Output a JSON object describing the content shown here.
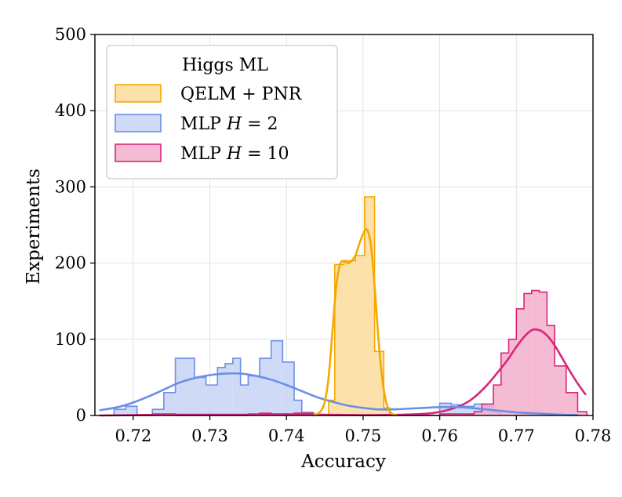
{
  "chart_data": {
    "type": "histogram",
    "title": "",
    "xlabel": "Accuracy",
    "ylabel": "Experiments",
    "xlim": [
      0.715,
      0.78
    ],
    "ylim": [
      0,
      500
    ],
    "xticks": [
      0.72,
      0.73,
      0.74,
      0.75,
      0.76,
      0.77,
      0.78
    ],
    "xtick_labels": [
      "0.72",
      "0.73",
      "0.74",
      "0.75",
      "0.76",
      "0.77",
      "0.78"
    ],
    "yticks": [
      0,
      100,
      200,
      300,
      400,
      500
    ],
    "ytick_labels": [
      "0",
      "100",
      "200",
      "300",
      "400",
      "500"
    ],
    "grid": true,
    "legend": {
      "title": "Higgs ML",
      "position": "top-left",
      "entries": [
        "QELM + PNR",
        "MLP H = 2",
        "MLP H = 10"
      ]
    },
    "series": [
      {
        "name": "QELM + PNR",
        "label_main": "QELM + PNR",
        "label_var": "",
        "label_rest": "",
        "fill": "#FDDC9B",
        "edge": "#F5A800",
        "bins": [
          [
            0.7455,
            0.7463,
            20
          ],
          [
            0.7463,
            0.7475,
            198
          ],
          [
            0.7475,
            0.749,
            203
          ],
          [
            0.749,
            0.7502,
            210
          ],
          [
            0.7502,
            0.7515,
            287
          ],
          [
            0.7515,
            0.7527,
            84
          ],
          [
            0.7527,
            0.7535,
            10
          ]
        ],
        "kde": [
          [
            0.7435,
            0
          ],
          [
            0.744,
            2
          ],
          [
            0.7445,
            6
          ],
          [
            0.745,
            18
          ],
          [
            0.7455,
            50
          ],
          [
            0.746,
            110
          ],
          [
            0.7465,
            170
          ],
          [
            0.747,
            198
          ],
          [
            0.7475,
            203
          ],
          [
            0.748,
            200
          ],
          [
            0.7485,
            203
          ],
          [
            0.749,
            210
          ],
          [
            0.7495,
            225
          ],
          [
            0.75,
            238
          ],
          [
            0.7505,
            244
          ],
          [
            0.751,
            225
          ],
          [
            0.7515,
            170
          ],
          [
            0.752,
            100
          ],
          [
            0.7525,
            48
          ],
          [
            0.753,
            18
          ],
          [
            0.7535,
            5
          ],
          [
            0.754,
            1
          ],
          [
            0.7545,
            0
          ]
        ]
      },
      {
        "name": "MLP H = 2",
        "label_main": "MLP ",
        "label_var": "H",
        "label_rest": " = 2",
        "fill": "#C7D3F6",
        "edge": "#6A8FE8",
        "bins": [
          [
            0.7175,
            0.719,
            8
          ],
          [
            0.719,
            0.7205,
            12
          ],
          [
            0.7205,
            0.7225,
            0
          ],
          [
            0.7225,
            0.724,
            8
          ],
          [
            0.724,
            0.7255,
            30
          ],
          [
            0.7255,
            0.728,
            75
          ],
          [
            0.728,
            0.7295,
            50
          ],
          [
            0.7295,
            0.731,
            40
          ],
          [
            0.731,
            0.732,
            63
          ],
          [
            0.732,
            0.733,
            68
          ],
          [
            0.733,
            0.734,
            75
          ],
          [
            0.734,
            0.735,
            40
          ],
          [
            0.735,
            0.7365,
            52
          ],
          [
            0.7365,
            0.738,
            75
          ],
          [
            0.738,
            0.7395,
            98
          ],
          [
            0.7395,
            0.741,
            70
          ],
          [
            0.741,
            0.742,
            20
          ],
          [
            0.742,
            0.7435,
            4
          ],
          [
            0.7435,
            0.7455,
            0
          ],
          [
            0.7455,
            0.7535,
            0
          ],
          [
            0.7535,
            0.76,
            0
          ],
          [
            0.76,
            0.7615,
            16
          ],
          [
            0.7615,
            0.763,
            14
          ],
          [
            0.763,
            0.7645,
            12
          ],
          [
            0.7645,
            0.766,
            15
          ],
          [
            0.766,
            0.767,
            12
          ],
          [
            0.767,
            0.768,
            5
          ]
        ],
        "kde": [
          [
            0.7157,
            7
          ],
          [
            0.718,
            11
          ],
          [
            0.72,
            17
          ],
          [
            0.722,
            25
          ],
          [
            0.724,
            34
          ],
          [
            0.726,
            43
          ],
          [
            0.728,
            49
          ],
          [
            0.73,
            53
          ],
          [
            0.732,
            55
          ],
          [
            0.734,
            55
          ],
          [
            0.736,
            52
          ],
          [
            0.738,
            47
          ],
          [
            0.74,
            40
          ],
          [
            0.742,
            32
          ],
          [
            0.744,
            24
          ],
          [
            0.746,
            18
          ],
          [
            0.748,
            13
          ],
          [
            0.75,
            10
          ],
          [
            0.752,
            8
          ],
          [
            0.754,
            8
          ],
          [
            0.756,
            9
          ],
          [
            0.758,
            10
          ],
          [
            0.76,
            11
          ],
          [
            0.762,
            11
          ],
          [
            0.764,
            10
          ],
          [
            0.766,
            8
          ],
          [
            0.768,
            6
          ],
          [
            0.77,
            4
          ],
          [
            0.772,
            3
          ],
          [
            0.774,
            2
          ],
          [
            0.776,
            1
          ],
          [
            0.778,
            0.5
          ]
        ]
      },
      {
        "name": "MLP H = 10",
        "label_main": "MLP ",
        "label_var": "H",
        "label_rest": " = 10",
        "fill": "#F2AFCB",
        "edge": "#D9267A",
        "bins": [
          [
            0.7175,
            0.7205,
            0
          ],
          [
            0.7205,
            0.7225,
            1
          ],
          [
            0.7225,
            0.7255,
            2
          ],
          [
            0.7255,
            0.735,
            0
          ],
          [
            0.735,
            0.7365,
            2
          ],
          [
            0.7365,
            0.738,
            3
          ],
          [
            0.738,
            0.741,
            2
          ],
          [
            0.741,
            0.7435,
            3
          ],
          [
            0.7435,
            0.7455,
            1
          ],
          [
            0.7455,
            0.7535,
            0
          ],
          [
            0.7535,
            0.76,
            0
          ],
          [
            0.76,
            0.7645,
            2
          ],
          [
            0.7645,
            0.7655,
            5
          ],
          [
            0.7655,
            0.767,
            15
          ],
          [
            0.767,
            0.768,
            40
          ],
          [
            0.768,
            0.769,
            82
          ],
          [
            0.769,
            0.77,
            100
          ],
          [
            0.77,
            0.771,
            140
          ],
          [
            0.771,
            0.772,
            160
          ],
          [
            0.772,
            0.773,
            164
          ],
          [
            0.773,
            0.774,
            162
          ],
          [
            0.774,
            0.775,
            118
          ],
          [
            0.775,
            0.7765,
            65
          ],
          [
            0.7765,
            0.778,
            30
          ],
          [
            0.778,
            0.7792,
            5
          ]
        ],
        "kde": [
          [
            0.7157,
            0
          ],
          [
            0.72,
            0.5
          ],
          [
            0.725,
            1
          ],
          [
            0.73,
            1
          ],
          [
            0.735,
            1
          ],
          [
            0.74,
            1.5
          ],
          [
            0.745,
            1
          ],
          [
            0.75,
            0.5
          ],
          [
            0.755,
            1
          ],
          [
            0.759,
            3
          ],
          [
            0.762,
            10
          ],
          [
            0.764,
            20
          ],
          [
            0.766,
            38
          ],
          [
            0.768,
            62
          ],
          [
            0.769,
            75
          ],
          [
            0.77,
            90
          ],
          [
            0.771,
            103
          ],
          [
            0.772,
            112
          ],
          [
            0.773,
            112
          ],
          [
            0.774,
            105
          ],
          [
            0.775,
            92
          ],
          [
            0.776,
            75
          ],
          [
            0.777,
            58
          ],
          [
            0.778,
            42
          ],
          [
            0.779,
            28
          ]
        ]
      }
    ]
  }
}
